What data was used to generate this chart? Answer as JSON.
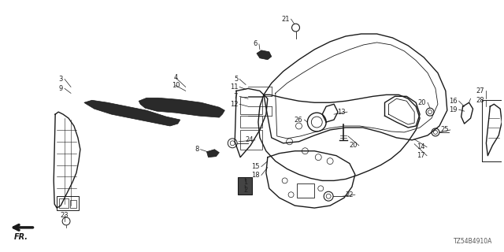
{
  "bg_color": "#ffffff",
  "line_color": "#1a1a1a",
  "dark_fill": "#2a2a2a",
  "diagram_code": "TZ54B4910A",
  "fig_w": 6.4,
  "fig_h": 3.2
}
